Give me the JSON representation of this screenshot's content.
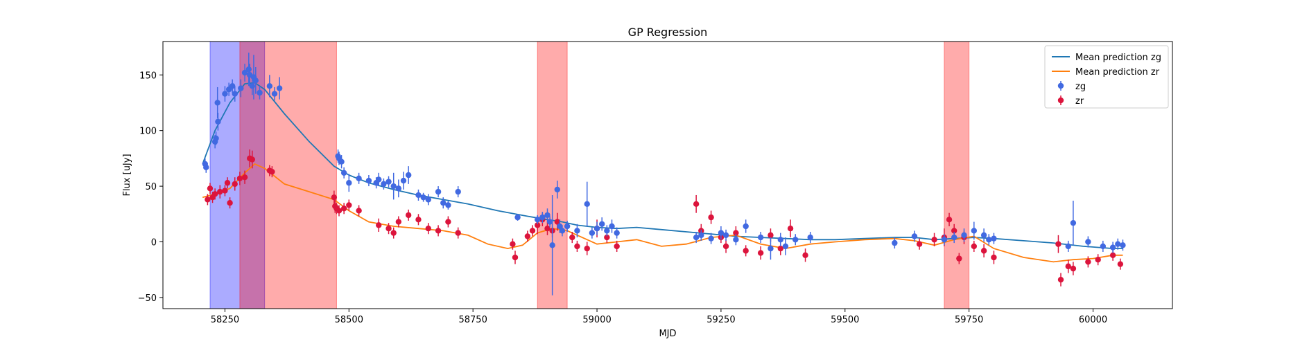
{
  "chart_data": {
    "type": "scatter",
    "title": "GP Regression",
    "xlabel": "MJD",
    "ylabel": "Flux [uJy]",
    "xlim": [
      58125,
      60160
    ],
    "ylim": [
      -60,
      180
    ],
    "xticks": [
      58250,
      58500,
      58750,
      59000,
      59250,
      59500,
      59750,
      60000
    ],
    "yticks": [
      -50,
      0,
      50,
      100,
      150
    ],
    "grid": false,
    "legend_position": "top-right",
    "colors": {
      "zg": "#4169e1",
      "zr": "#dc143c",
      "mean_zg": "#1f77b4",
      "mean_zr": "#ff7f0e",
      "band_blue": "#0000ff",
      "band_red": "#ff0000"
    },
    "shaded_regions": [
      {
        "color": "blue",
        "x0": 58220,
        "x1": 58330
      },
      {
        "color": "red",
        "x0": 58280,
        "x1": 58475
      },
      {
        "color": "red",
        "x0": 58880,
        "x1": 58940
      },
      {
        "color": "red",
        "x0": 59700,
        "x1": 59750
      }
    ],
    "lines": [
      {
        "name": "Mean prediction zg",
        "color": "#1f77b4",
        "x": [
          58205,
          58230,
          58260,
          58290,
          58310,
          58330,
          58370,
          58420,
          58470,
          58500,
          58540,
          58590,
          58640,
          58690,
          58740,
          58800,
          58860,
          58900,
          58930,
          58960,
          59000,
          59040,
          59080,
          59130,
          59180,
          59230,
          59280,
          59330,
          59380,
          59430,
          59480,
          59540,
          59600,
          59640,
          59680,
          59720,
          59760,
          59800,
          59860,
          59920,
          59980,
          60040,
          60060
        ],
        "y": [
          70,
          100,
          125,
          142,
          143,
          137,
          115,
          90,
          68,
          60,
          53,
          47,
          42,
          38,
          34,
          28,
          23,
          20,
          18,
          15,
          13,
          12,
          13,
          11,
          9,
          7,
          5,
          4,
          3,
          2,
          2,
          3,
          4,
          4,
          2,
          3,
          4,
          3,
          1,
          -1,
          -4,
          -6,
          -6
        ]
      },
      {
        "name": "Mean prediction zr",
        "color": "#ff7f0e",
        "x": [
          58205,
          58230,
          58260,
          58290,
          58310,
          58330,
          58370,
          58420,
          58470,
          58500,
          58540,
          58590,
          58640,
          58690,
          58740,
          58780,
          58820,
          58850,
          58880,
          58910,
          58940,
          58970,
          59000,
          59040,
          59080,
          59130,
          59180,
          59230,
          59280,
          59330,
          59380,
          59430,
          59480,
          59540,
          59600,
          59640,
          59680,
          59720,
          59760,
          59800,
          59860,
          59920,
          59960,
          60000,
          60040,
          60060
        ],
        "y": [
          40,
          43,
          48,
          62,
          70,
          66,
          52,
          45,
          38,
          28,
          18,
          14,
          12,
          10,
          6,
          -2,
          -6,
          -3,
          8,
          12,
          10,
          4,
          -2,
          0,
          2,
          -4,
          -2,
          4,
          6,
          -2,
          -6,
          -2,
          0,
          2,
          3,
          1,
          -3,
          2,
          5,
          -6,
          -14,
          -18,
          -16,
          -15,
          -12,
          -12
        ]
      }
    ],
    "series": [
      {
        "name": "zg",
        "color": "#4169e1",
        "x": [
          58210,
          58212,
          58230,
          58232,
          58235,
          58236,
          58250,
          58258,
          58265,
          58270,
          58282,
          58290,
          58298,
          58300,
          58305,
          58308,
          58312,
          58320,
          58340,
          58350,
          58360,
          58478,
          58480,
          58485,
          58490,
          58500,
          58520,
          58540,
          58555,
          58560,
          58570,
          58580,
          58590,
          58600,
          58610,
          58620,
          58640,
          58650,
          58660,
          58680,
          58690,
          58700,
          58720,
          58840,
          58880,
          58890,
          58900,
          58905,
          58910,
          58920,
          58925,
          58930,
          58940,
          58960,
          58980,
          58990,
          59000,
          59010,
          59020,
          59030,
          59040,
          59200,
          59210,
          59230,
          59250,
          59260,
          59280,
          59300,
          59330,
          59350,
          59370,
          59380,
          59400,
          59430,
          59600,
          59640,
          59700,
          59720,
          59740,
          59760,
          59780,
          59790,
          59800,
          59950,
          59960,
          59990,
          60020,
          60040,
          60050,
          60060
        ],
        "y": [
          70,
          67,
          90,
          93,
          125,
          108,
          133,
          137,
          140,
          133,
          138,
          152,
          155,
          150,
          140,
          148,
          145,
          134,
          140,
          133,
          138,
          77,
          75,
          72,
          62,
          53,
          57,
          55,
          53,
          56,
          52,
          54,
          50,
          48,
          55,
          60,
          42,
          40,
          38,
          45,
          35,
          33,
          45,
          22,
          20,
          22,
          24,
          18,
          -3,
          47,
          14,
          10,
          14,
          10,
          34,
          8,
          12,
          16,
          10,
          14,
          8,
          4,
          6,
          3,
          8,
          6,
          2,
          14,
          4,
          -6,
          2,
          -4,
          2,
          4,
          -1,
          5,
          2,
          4,
          6,
          10,
          6,
          2,
          3,
          -4,
          17,
          0,
          -4,
          -5,
          -2,
          -3
        ],
        "err": [
          5,
          5,
          6,
          6,
          14,
          8,
          7,
          6,
          6,
          7,
          8,
          8,
          15,
          10,
          8,
          20,
          12,
          6,
          10,
          6,
          10,
          6,
          6,
          6,
          5,
          8,
          5,
          5,
          5,
          6,
          5,
          5,
          12,
          8,
          8,
          8,
          5,
          4,
          5,
          5,
          5,
          4,
          5,
          3,
          4,
          5,
          6,
          5,
          45,
          8,
          6,
          5,
          5,
          6,
          20,
          5,
          6,
          6,
          5,
          6,
          5,
          5,
          5,
          5,
          6,
          5,
          5,
          6,
          5,
          10,
          6,
          8,
          5,
          5,
          5,
          5,
          5,
          5,
          6,
          8,
          6,
          5,
          5,
          5,
          20,
          5,
          5,
          5,
          5,
          5
        ]
      },
      {
        "name": "zr",
        "color": "#dc143c",
        "x": [
          58215,
          58220,
          58225,
          58230,
          58240,
          58250,
          58255,
          58260,
          58270,
          58280,
          58290,
          58300,
          58305,
          58340,
          58345,
          58470,
          58472,
          58475,
          58480,
          58490,
          58500,
          58520,
          58560,
          58580,
          58590,
          58600,
          58620,
          58640,
          58660,
          58680,
          58700,
          58720,
          58830,
          58835,
          58860,
          58870,
          58880,
          58890,
          58900,
          58910,
          58920,
          58950,
          58960,
          58980,
          59000,
          59020,
          59040,
          59200,
          59210,
          59230,
          59250,
          59260,
          59280,
          59300,
          59330,
          59350,
          59370,
          59390,
          59420,
          59650,
          59680,
          59700,
          59710,
          59720,
          59730,
          59740,
          59760,
          59780,
          59800,
          59930,
          59935,
          59950,
          59960,
          59990,
          60010,
          60040,
          60055
        ],
        "y": [
          38,
          48,
          40,
          43,
          45,
          46,
          53,
          35,
          52,
          57,
          58,
          75,
          74,
          64,
          63,
          40,
          32,
          30,
          28,
          30,
          33,
          28,
          15,
          12,
          8,
          18,
          24,
          20,
          12,
          10,
          18,
          8,
          -2,
          -14,
          5,
          10,
          15,
          20,
          12,
          10,
          18,
          4,
          -4,
          -6,
          12,
          4,
          -4,
          34,
          10,
          22,
          4,
          -4,
          8,
          -8,
          -10,
          6,
          -6,
          12,
          -12,
          -2,
          2,
          4,
          20,
          10,
          -15,
          4,
          -4,
          -8,
          -14,
          -2,
          -34,
          -22,
          -24,
          -18,
          -16,
          -12,
          -20
        ],
        "err": [
          5,
          5,
          5,
          5,
          6,
          5,
          5,
          5,
          6,
          6,
          6,
          8,
          8,
          5,
          5,
          6,
          6,
          5,
          5,
          5,
          5,
          5,
          6,
          5,
          5,
          5,
          5,
          5,
          5,
          5,
          5,
          5,
          5,
          6,
          5,
          5,
          8,
          6,
          6,
          6,
          8,
          5,
          5,
          6,
          8,
          5,
          5,
          8,
          6,
          6,
          5,
          6,
          6,
          5,
          6,
          6,
          6,
          8,
          6,
          5,
          6,
          8,
          6,
          6,
          5,
          6,
          5,
          6,
          6,
          8,
          6,
          6,
          6,
          5,
          5,
          5,
          5
        ]
      }
    ]
  }
}
